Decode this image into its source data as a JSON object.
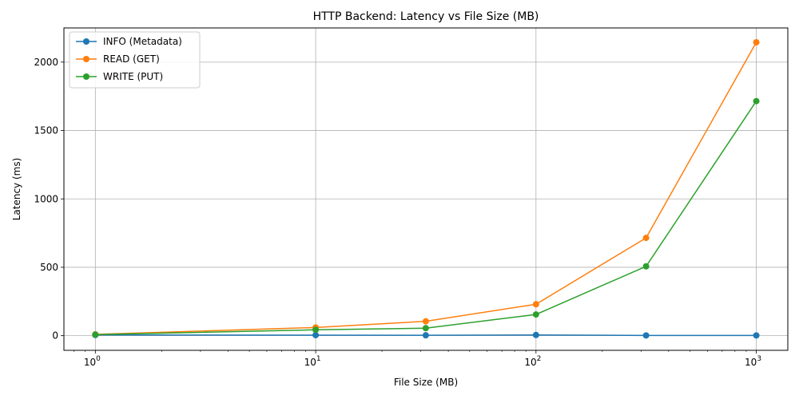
{
  "chart_data": {
    "type": "line",
    "title": "HTTP Backend: Latency vs File Size (MB)",
    "xlabel": "File Size (MB)",
    "ylabel": "Latency (ms)",
    "x_scale": "log",
    "x": [
      1,
      10,
      31.6,
      100,
      316,
      1000
    ],
    "xlim": [
      0.72,
      1390
    ],
    "ylim": [
      -107,
      2250
    ],
    "x_ticks": [
      {
        "value": 1,
        "base": "10",
        "exp": "0"
      },
      {
        "value": 10,
        "base": "10",
        "exp": "1"
      },
      {
        "value": 100,
        "base": "10",
        "exp": "2"
      },
      {
        "value": 1000,
        "base": "10",
        "exp": "3"
      }
    ],
    "y_ticks": [
      {
        "value": 0,
        "label": "0"
      },
      {
        "value": 500,
        "label": "500"
      },
      {
        "value": 1000,
        "label": "1000"
      },
      {
        "value": 1500,
        "label": "1500"
      },
      {
        "value": 2000,
        "label": "2000"
      }
    ],
    "grid": true,
    "legend_position": "top-left",
    "series": [
      {
        "name": "INFO (Metadata)",
        "color": "#1f77b4",
        "marker": "circle",
        "values": [
          5,
          4,
          3,
          5,
          2,
          2
        ]
      },
      {
        "name": "READ (GET)",
        "color": "#ff7f0e",
        "marker": "circle",
        "values": [
          10,
          60,
          105,
          230,
          715,
          2145
        ]
      },
      {
        "name": "WRITE (PUT)",
        "color": "#2ca02c",
        "marker": "circle",
        "values": [
          8,
          43,
          55,
          155,
          507,
          1715
        ]
      }
    ]
  }
}
